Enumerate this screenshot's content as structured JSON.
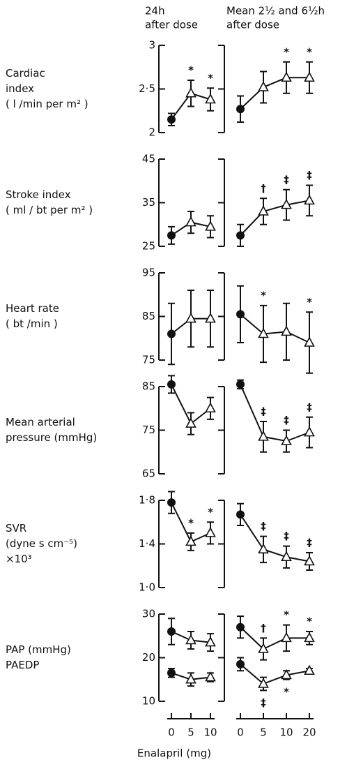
{
  "chart_data": {
    "type": "line",
    "xlabel": "Enalapril (mg)",
    "columns": [
      {
        "title": [
          "24h",
          "after dose"
        ],
        "categories": [
          0,
          5,
          10
        ]
      },
      {
        "title": [
          "Mean 2½ and 6½h",
          "after dose"
        ],
        "categories": [
          0,
          5,
          10,
          20
        ]
      }
    ],
    "panels": [
      {
        "ylabel": [
          "Cardiac",
          "index",
          "( l /min per m² )"
        ],
        "ylim": [
          2,
          3
        ],
        "yticks": [
          2,
          {
            "value": 2.5,
            "label": "2·5"
          },
          3
        ],
        "plots": [
          {
            "series": [
              {
                "values": [
                  2.15,
                  2.45,
                  2.38
                ],
                "errors": [
                  0.07,
                  0.15,
                  0.13
                ],
                "annotations": [
                  null,
                  "*",
                  "*"
                ]
              }
            ]
          },
          {
            "series": [
              {
                "values": [
                  2.27,
                  2.52,
                  2.63,
                  2.63
                ],
                "errors": [
                  0.15,
                  0.18,
                  0.18,
                  0.18
                ],
                "annotations": [
                  null,
                  null,
                  "*",
                  "*"
                ]
              }
            ]
          }
        ]
      },
      {
        "ylabel": [
          "Stroke index",
          "( ml / bt per m² )"
        ],
        "ylim": [
          25,
          45
        ],
        "yticks": [
          25,
          35,
          45
        ],
        "plots": [
          {
            "series": [
              {
                "values": [
                  27.5,
                  30.5,
                  29.5
                ],
                "errors": [
                  2,
                  2.5,
                  2.5
                ],
                "annotations": [
                  null,
                  null,
                  null
                ]
              }
            ]
          },
          {
            "series": [
              {
                "values": [
                  27.5,
                  33,
                  34.5,
                  35.5
                ],
                "errors": [
                  2.5,
                  3,
                  3.5,
                  3.5
                ],
                "annotations": [
                  null,
                  "†",
                  "‡",
                  "‡"
                ]
              }
            ]
          }
        ]
      },
      {
        "ylabel": [
          "Heart rate",
          "( bt /min )"
        ],
        "ylim": [
          75,
          95
        ],
        "yticks": [
          75,
          85,
          95
        ],
        "plots": [
          {
            "series": [
              {
                "values": [
                  81,
                  84.5,
                  84.5
                ],
                "errors": [
                  7,
                  6.5,
                  6.5
                ],
                "annotations": [
                  null,
                  null,
                  null
                ]
              }
            ]
          },
          {
            "series": [
              {
                "values": [
                  85.5,
                  81,
                  81.5,
                  79
                ],
                "errors": [
                  6.5,
                  6.5,
                  6.5,
                  7
                ],
                "annotations": [
                  null,
                  "*",
                  null,
                  "*"
                ]
              }
            ]
          }
        ]
      },
      {
        "ylabel": [
          "Mean arterial",
          "pressure (mmHg)"
        ],
        "ylim": [
          65,
          85
        ],
        "yticks": [
          65,
          75,
          85
        ],
        "plots": [
          {
            "series": [
              {
                "values": [
                  85.5,
                  76.5,
                  80
                ],
                "errors": [
                  2,
                  2.5,
                  2.5
                ],
                "annotations": [
                  null,
                  null,
                  null
                ]
              }
            ]
          },
          {
            "series": [
              {
                "values": [
                  85.5,
                  73.5,
                  72.5,
                  74.5
                ],
                "errors": [
                  1,
                  3.5,
                  2.5,
                  3.5
                ],
                "annotations": [
                  null,
                  "‡",
                  "‡",
                  "‡"
                ]
              }
            ]
          }
        ]
      },
      {
        "ylabel": [
          "SVR",
          "(dyne s cm⁻⁵)",
          "×10³"
        ],
        "ylim": [
          1.0,
          1.8
        ],
        "yticks": [
          {
            "value": 1.0,
            "label": "1·0"
          },
          {
            "value": 1.4,
            "label": "1·4"
          },
          {
            "value": 1.8,
            "label": "1·8"
          }
        ],
        "plots": [
          {
            "series": [
              {
                "values": [
                  1.78,
                  1.42,
                  1.5
                ],
                "errors": [
                  0.1,
                  0.08,
                  0.1
                ],
                "annotations": [
                  null,
                  "*",
                  "*"
                ]
              }
            ]
          },
          {
            "series": [
              {
                "values": [
                  1.67,
                  1.35,
                  1.28,
                  1.24
                ],
                "errors": [
                  0.1,
                  0.12,
                  0.1,
                  0.08
                ],
                "annotations": [
                  null,
                  "‡",
                  "‡",
                  "‡"
                ]
              }
            ]
          }
        ]
      },
      {
        "ylabel": [
          "PAP  (mmHg)",
          "PAEDP"
        ],
        "ylim": [
          10,
          30
        ],
        "yticks": [
          10,
          20,
          30
        ],
        "plots": [
          {
            "series": [
              {
                "values": [
                  26,
                  24,
                  23.5
                ],
                "errors": [
                  3,
                  2,
                  2
                ],
                "annotations": [
                  null,
                  null,
                  null
                ]
              },
              {
                "values": [
                  16.5,
                  15,
                  15.5
                ],
                "errors": [
                  1,
                  1.5,
                  1
                ],
                "annotations": [
                  null,
                  null,
                  null
                ]
              }
            ]
          },
          {
            "series": [
              {
                "values": [
                  27,
                  22,
                  24.5,
                  24.5
                ],
                "errors": [
                  2.5,
                  2.5,
                  3,
                  1.5
                ],
                "annotations": [
                  null,
                  "†",
                  "*",
                  "*"
                ]
              },
              {
                "values": [
                  18.5,
                  14,
                  16,
                  17
                ],
                "errors": [
                  1.5,
                  1.5,
                  1,
                  0.5
                ],
                "annotations": [
                  null,
                  "‡",
                  "*",
                  null
                ]
              }
            ]
          }
        ]
      }
    ]
  }
}
